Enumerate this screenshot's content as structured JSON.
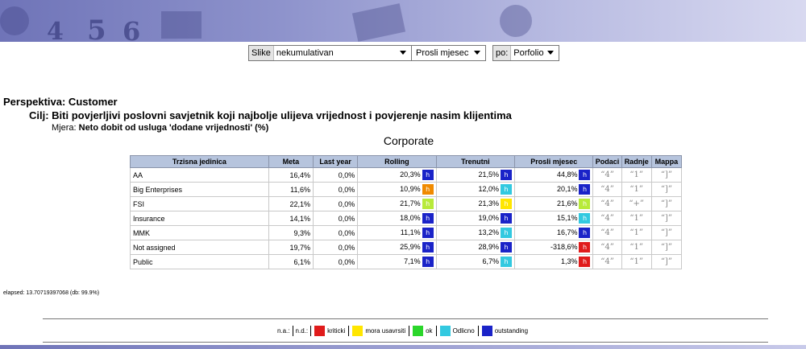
{
  "banner": {
    "glyphs": [
      "4",
      "5",
      "6"
    ],
    "colors": {
      "start": "#6f74b8",
      "end": "#d8d9f0"
    }
  },
  "filters": {
    "slike_label": "Slike",
    "slike_value": "nekumulativan",
    "period_value": "Prosli mjesec",
    "po_label": "po:",
    "po_value": "Porfolio"
  },
  "heading": {
    "perspektiva": "Perspektiva: Customer",
    "cilj": "Cilj: Biti povjerljivi poslovni savjetnik koji najbolje ulijeva vrijednost i povjerenje nasim klijentima",
    "mjera_label": "Mjera:",
    "mjera_value": "Neto dobit od usluga 'dodane vrijednosti' (%)",
    "section": "Corporate"
  },
  "table": {
    "headers": [
      "Trzisna jedinica",
      "Meta",
      "Last year",
      "Rolling",
      "Trenutni",
      "Prosli mjesec",
      "Podaci",
      "Radnje",
      "Mappa"
    ],
    "rows": [
      {
        "unit": "AA",
        "meta": "16,4%",
        "last": "0,0%",
        "rolling": "20,3%",
        "rolling_s": "outstanding",
        "trenutni": "21,5%",
        "trenutni_s": "outstanding",
        "prosli": "44,8%",
        "prosli_s": "outstanding",
        "podaci": "“4”",
        "radnje": "“1”",
        "mappa": "“]”"
      },
      {
        "unit": "Big Enterprises",
        "meta": "11,6%",
        "last": "0,0%",
        "rolling": "10,9%",
        "rolling_s": "orange",
        "trenutni": "12,0%",
        "trenutni_s": "odlicno",
        "prosli": "20,1%",
        "prosli_s": "outstanding",
        "podaci": "“4”",
        "radnje": "“1”",
        "mappa": "“]”"
      },
      {
        "unit": "FSI",
        "meta": "22,1%",
        "last": "0,0%",
        "rolling": "21,7%",
        "rolling_s": "lightgreen",
        "trenutni": "21,3%",
        "trenutni_s": "mora",
        "prosli": "21,6%",
        "prosli_s": "lightgreen",
        "podaci": "“4”",
        "radnje": "“+”",
        "mappa": "“]”"
      },
      {
        "unit": "Insurance",
        "meta": "14,1%",
        "last": "0,0%",
        "rolling": "18,0%",
        "rolling_s": "outstanding",
        "trenutni": "19,0%",
        "trenutni_s": "outstanding",
        "prosli": "15,1%",
        "prosli_s": "odlicno",
        "podaci": "“4”",
        "radnje": "“1”",
        "mappa": "“]”"
      },
      {
        "unit": "MMK",
        "meta": "9,3%",
        "last": "0,0%",
        "rolling": "11,1%",
        "rolling_s": "outstanding",
        "trenutni": "13,2%",
        "trenutni_s": "odlicno",
        "prosli": "16,7%",
        "prosli_s": "outstanding",
        "podaci": "“4”",
        "radnje": "“1”",
        "mappa": "“]”"
      },
      {
        "unit": "Not assigned",
        "meta": "19,7%",
        "last": "0,0%",
        "rolling": "25,9%",
        "rolling_s": "outstanding",
        "trenutni": "28,9%",
        "trenutni_s": "outstanding",
        "prosli": "-318,6%",
        "prosli_s": "kriticki",
        "podaci": "“4”",
        "radnje": "“1”",
        "mappa": "“]”"
      },
      {
        "unit": "Public",
        "meta": "6,1%",
        "last": "0,0%",
        "rolling": "7,1%",
        "rolling_s": "outstanding",
        "trenutni": "6,7%",
        "trenutni_s": "odlicno",
        "prosli": "1,3%",
        "prosli_s": "kriticki",
        "podaci": "“4”",
        "radnje": "“1”",
        "mappa": "“]”"
      }
    ]
  },
  "status_colors": {
    "outstanding": "#1a23c8",
    "odlicno": "#33c9e0",
    "mora": "#ffe600",
    "ok": "#2bd62b",
    "kriticki": "#e01b1b",
    "orange": "#f08a00",
    "lightgreen": "#b8ea3a"
  },
  "indicator_glyph": "h",
  "elapsed": "elapsed: 13.70719397068 (db: 99.9%)",
  "legend": {
    "na": "n.a.:",
    "nd": "n.d.:",
    "items": [
      {
        "label": "kriticki",
        "color": "#e01b1b"
      },
      {
        "label": "mora usavrsiti",
        "color": "#ffe600"
      },
      {
        "label": "ok",
        "color": "#2bd62b"
      },
      {
        "label": "Odlicno",
        "color": "#33c9e0"
      },
      {
        "label": "outstanding",
        "color": "#1a23c8"
      }
    ]
  }
}
